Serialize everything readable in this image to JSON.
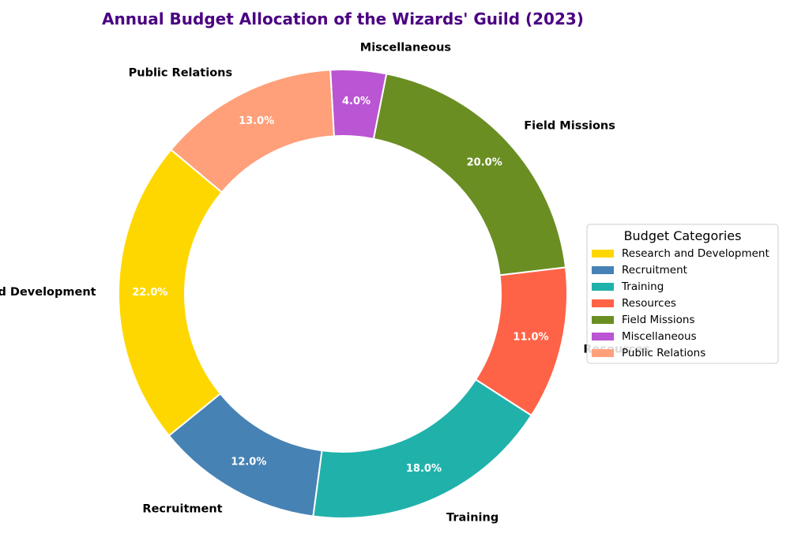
{
  "chart_data": {
    "type": "pie",
    "variant": "donut",
    "title": "Annual Budget Allocation of the Wizards' Guild (2023)",
    "title_color": "#4B0082",
    "categories": [
      "Research and Development",
      "Recruitment",
      "Training",
      "Resources",
      "Field Missions",
      "Miscellaneous",
      "Public Relations"
    ],
    "values": [
      22.0,
      12.0,
      18.0,
      11.0,
      20.0,
      4.0,
      13.0
    ],
    "value_labels": [
      "22.0%",
      "12.0%",
      "18.0%",
      "11.0%",
      "20.0%",
      "4.0%",
      "13.0%"
    ],
    "colors": [
      "#FFD700",
      "#4682B4",
      "#20B2AA",
      "#FF6347",
      "#6B8E23",
      "#BA55D3",
      "#FFA07A"
    ],
    "start_angle_deg": 140,
    "direction": "counterclockwise",
    "legend": {
      "title": "Budget Categories",
      "placement": "center-right",
      "entries": [
        "Research and Development",
        "Recruitment",
        "Training",
        "Resources",
        "Field Missions",
        "Miscellaneous",
        "Public Relations"
      ]
    }
  }
}
